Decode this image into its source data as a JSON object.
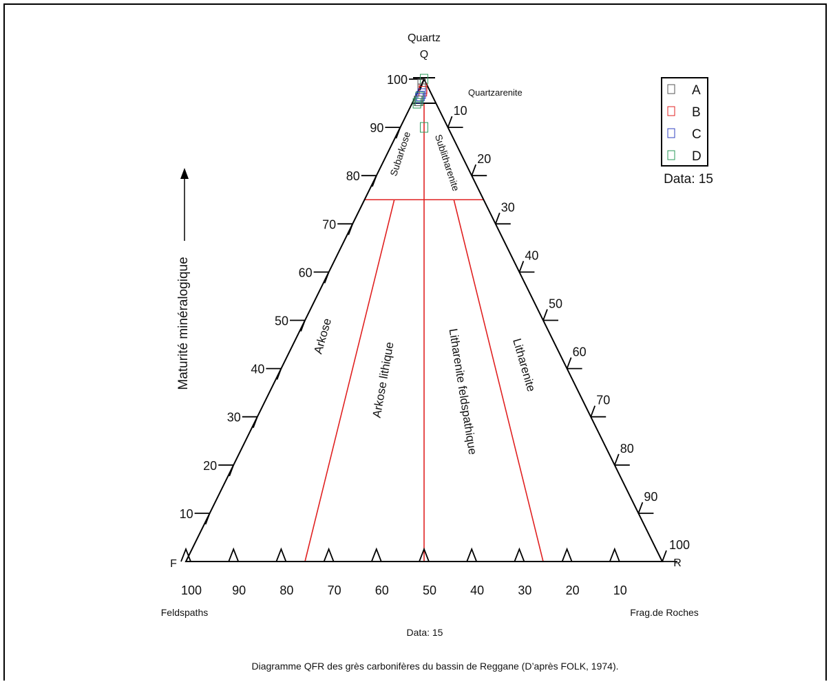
{
  "apex_top": {
    "name": "Quartz",
    "letter": "Q"
  },
  "apex_left": {
    "letter": "F",
    "name": "Feldspaths"
  },
  "apex_right": {
    "letter": "R",
    "name": "Frag.de Roches"
  },
  "left_ticks": [
    "10",
    "20",
    "30",
    "40",
    "50",
    "60",
    "70",
    "80",
    "90",
    "100"
  ],
  "right_ticks": [
    "10",
    "20",
    "30",
    "40",
    "50",
    "60",
    "70",
    "80",
    "90",
    "100"
  ],
  "bottom_ticks": [
    "100",
    "90",
    "80",
    "70",
    "60",
    "50",
    "40",
    "30",
    "20",
    "10"
  ],
  "fields": {
    "quartzarenite": "Quartzarenite",
    "subarkose": "Subarkose",
    "sublitharenite": "Sublitharenite",
    "arkose": "Arkose",
    "arkose_lithique": "Arkose  lithique",
    "litharenite_feldspathique": "Litharenite feldspathique",
    "litharenite": "Litharenite"
  },
  "axis_arrow_label": "Maturité minéralogique",
  "legend": {
    "items": [
      {
        "label": "A",
        "color": "#555555"
      },
      {
        "label": "B",
        "color": "#e02020"
      },
      {
        "label": "C",
        "color": "#3040c0"
      },
      {
        "label": "D",
        "color": "#2a9a5a"
      }
    ],
    "count": "Data: 15"
  },
  "bottom_count": "Data: 15",
  "caption": "Diagramme QFR des grès carbonifères du bassin de Reggane (D’après FOLK, 1974).",
  "colors": {
    "boundary": "#e02020",
    "frame": "#000000"
  },
  "samples": [
    {
      "series": "A",
      "q": 100,
      "f": 0
    },
    {
      "series": "C",
      "q": 100,
      "f": 0
    },
    {
      "series": "D",
      "q": 100,
      "f": 0
    },
    {
      "series": "A",
      "q": 99,
      "f": 1
    },
    {
      "series": "B",
      "q": 98,
      "f": 1.2
    },
    {
      "series": "B",
      "q": 97.5,
      "f": 1.5
    },
    {
      "series": "A",
      "q": 98,
      "f": 1.5
    },
    {
      "series": "C",
      "q": 97,
      "f": 2
    },
    {
      "series": "C",
      "q": 96.5,
      "f": 2.5
    },
    {
      "series": "D",
      "q": 96.3,
      "f": 2.8
    },
    {
      "series": "C",
      "q": 96,
      "f": 3
    },
    {
      "series": "D",
      "q": 95.5,
      "f": 3.3
    },
    {
      "series": "A",
      "q": 95.5,
      "f": 3.5
    },
    {
      "series": "D",
      "q": 95,
      "f": 4
    },
    {
      "series": "D",
      "q": 90,
      "f": 5
    }
  ]
}
